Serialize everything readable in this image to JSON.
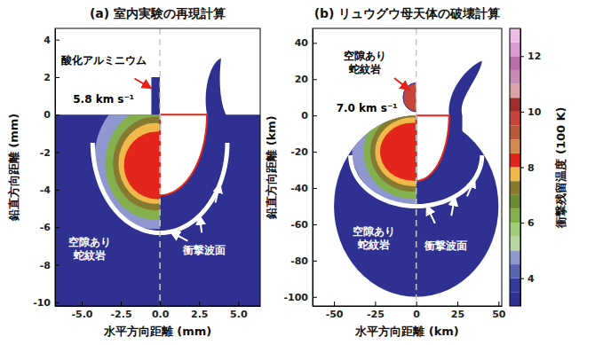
{
  "chart_data": [
    {
      "type": "simulation",
      "title": "(a) 室内実験の再現計算",
      "xlabel": "水平方向距離 (mm)",
      "ylabel": "鉛直方向距離 (mm)",
      "xlim": [
        -6.7,
        6.4
      ],
      "ylim": [
        -10.2,
        4.6
      ],
      "xticks": [
        {
          "value": -5,
          "label": "-5.0"
        },
        {
          "value": -2.5,
          "label": "-2.5"
        },
        {
          "value": 0,
          "label": "0.0"
        },
        {
          "value": 2.5,
          "label": "2.5"
        },
        {
          "value": 5,
          "label": "5.0"
        }
      ],
      "yticks": [
        -10,
        -8,
        -6,
        -4,
        -2,
        0,
        2,
        4
      ],
      "grid": false,
      "color": "#2e3192",
      "target": {
        "shape": "half-space",
        "top": 0
      },
      "projectile": {
        "shape": "rect",
        "x0": -0.55,
        "x1": 0,
        "y0": 0,
        "y1": 2
      },
      "zones": [
        {
          "temperature": 4.5,
          "cx": -0.3,
          "cy": -2.4,
          "rx": 3.9,
          "ry": 3.7
        },
        {
          "temperature": 6,
          "cx": -0.3,
          "cy": -2.6,
          "rx": 3.2,
          "ry": 3.0
        },
        {
          "temperature": 7,
          "cx": -0.3,
          "cy": -2.6,
          "rx": 2.7,
          "ry": 2.5
        },
        {
          "temperature": 7.5,
          "cx": -0.3,
          "cy": -2.6,
          "rx": 2.35,
          "ry": 2.15
        },
        {
          "temperature": 8,
          "cx": -0.2,
          "cy": -2.7,
          "rx": 2.1,
          "ry": 1.8
        }
      ],
      "shock_front": {
        "cx": 0,
        "cy": -1.5,
        "rx": 4.3,
        "ry": 4.8
      },
      "crater": {
        "radius": 3,
        "depth": 4.3,
        "ejecta_tip": [
          3.9,
          3
        ]
      },
      "annotations": [
        {
          "lines": [
            "酸化アルミニウム"
          ],
          "x": -3.6,
          "y": 2.9,
          "color": "#000000",
          "arrow_to": [
            [
              -0.55,
              1.4
            ]
          ]
        },
        {
          "lines": [
            "5.8 km s⁻¹"
          ],
          "x": -3.6,
          "y": 0.8,
          "color": "#000000"
        },
        {
          "lines": [
            "空隙あり",
            "蛇紋岩"
          ],
          "x": -4.5,
          "y": -6.8,
          "color": "#ffffff"
        },
        {
          "lines": [
            "衝撃波面"
          ],
          "x": 2.8,
          "y": -7.2,
          "color": "#ffffff",
          "arrow_to": [
            [
              3.83,
              -3.68
            ],
            [
              2.53,
              -5.38
            ],
            [
              0.67,
              -6.24
            ]
          ]
        }
      ]
    },
    {
      "type": "simulation",
      "title": "(b) リュウグウ母天体の破壊計算",
      "xlabel": "水平方向距離 (km)",
      "ylabel": "鉛直方向距離 (km)",
      "xlim": [
        -63,
        52
      ],
      "ylim": [
        -105,
        48
      ],
      "xticks": [
        -50,
        -25,
        0,
        25,
        50
      ],
      "yticks": [
        -100,
        -80,
        -60,
        -40,
        -20,
        0,
        20,
        40
      ],
      "grid": false,
      "color": "#2e3192",
      "target": {
        "shape": "circle",
        "cx": 0,
        "cy": -50,
        "r": 50
      },
      "projectile": {
        "shape": "circle",
        "cx": 0,
        "cy": 10,
        "r": 8,
        "temperature": 9.5
      },
      "zones": [
        {
          "temperature": 4.5,
          "cx": -2,
          "cy": -20,
          "rx": 37,
          "ry": 29
        },
        {
          "temperature": 6,
          "cx": -2,
          "cy": -20,
          "rx": 30,
          "ry": 26
        },
        {
          "temperature": 7,
          "cx": -2,
          "cy": -20,
          "rx": 26,
          "ry": 22
        },
        {
          "temperature": 7.5,
          "cx": -2,
          "cy": -20,
          "rx": 23,
          "ry": 19
        },
        {
          "temperature": 8,
          "cx": -2,
          "cy": -20,
          "rx": 20,
          "ry": 16
        }
      ],
      "shock_front": {
        "cx": 0,
        "cy": -22,
        "rx": 40,
        "ry": 28
      },
      "crater": {
        "radius": 20,
        "depth": 36,
        "ejecta_tip": [
          40,
          30
        ]
      },
      "annotations": [
        {
          "lines": [
            "空隙あり",
            "蛇紋岩"
          ],
          "x": -31,
          "y": 33,
          "color": "#000000",
          "arrow_to": [
            [
              -4,
              14
            ]
          ]
        },
        {
          "lines": [
            "7.0 km s⁻¹"
          ],
          "x": -30,
          "y": 4,
          "color": "#000000"
        },
        {
          "lines": [
            "空隙あり",
            "蛇紋岩"
          ],
          "x": -26,
          "y": -64,
          "color": "#ffffff"
        },
        {
          "lines": [
            "衝撃波面"
          ],
          "x": 18,
          "y": -72,
          "color": "#ffffff",
          "arrow_to": [
            [
              35.6,
              -34.7
            ],
            [
              23.5,
              -44.7
            ],
            [
              6.3,
              -49.7
            ]
          ]
        }
      ]
    }
  ],
  "colorbar": {
    "label": "衝撃残留温度 (100 K)",
    "range": [
      3,
      13
    ],
    "ticks": [
      4,
      6,
      8,
      10,
      12
    ],
    "colors": [
      "#2e3192",
      "#34399a",
      "#5b66b3",
      "#8f97cf",
      "#b8d6a0",
      "#a2cc79",
      "#83b04c",
      "#6b8b34",
      "#857a30",
      "#f0b94a",
      "#e3261c",
      "#d38a4f",
      "#b85a3a",
      "#c6453b",
      "#9e2f2c",
      "#d9a2a6",
      "#c98bb5",
      "#b86fa9",
      "#d89bd2",
      "#ecbde6"
    ]
  }
}
